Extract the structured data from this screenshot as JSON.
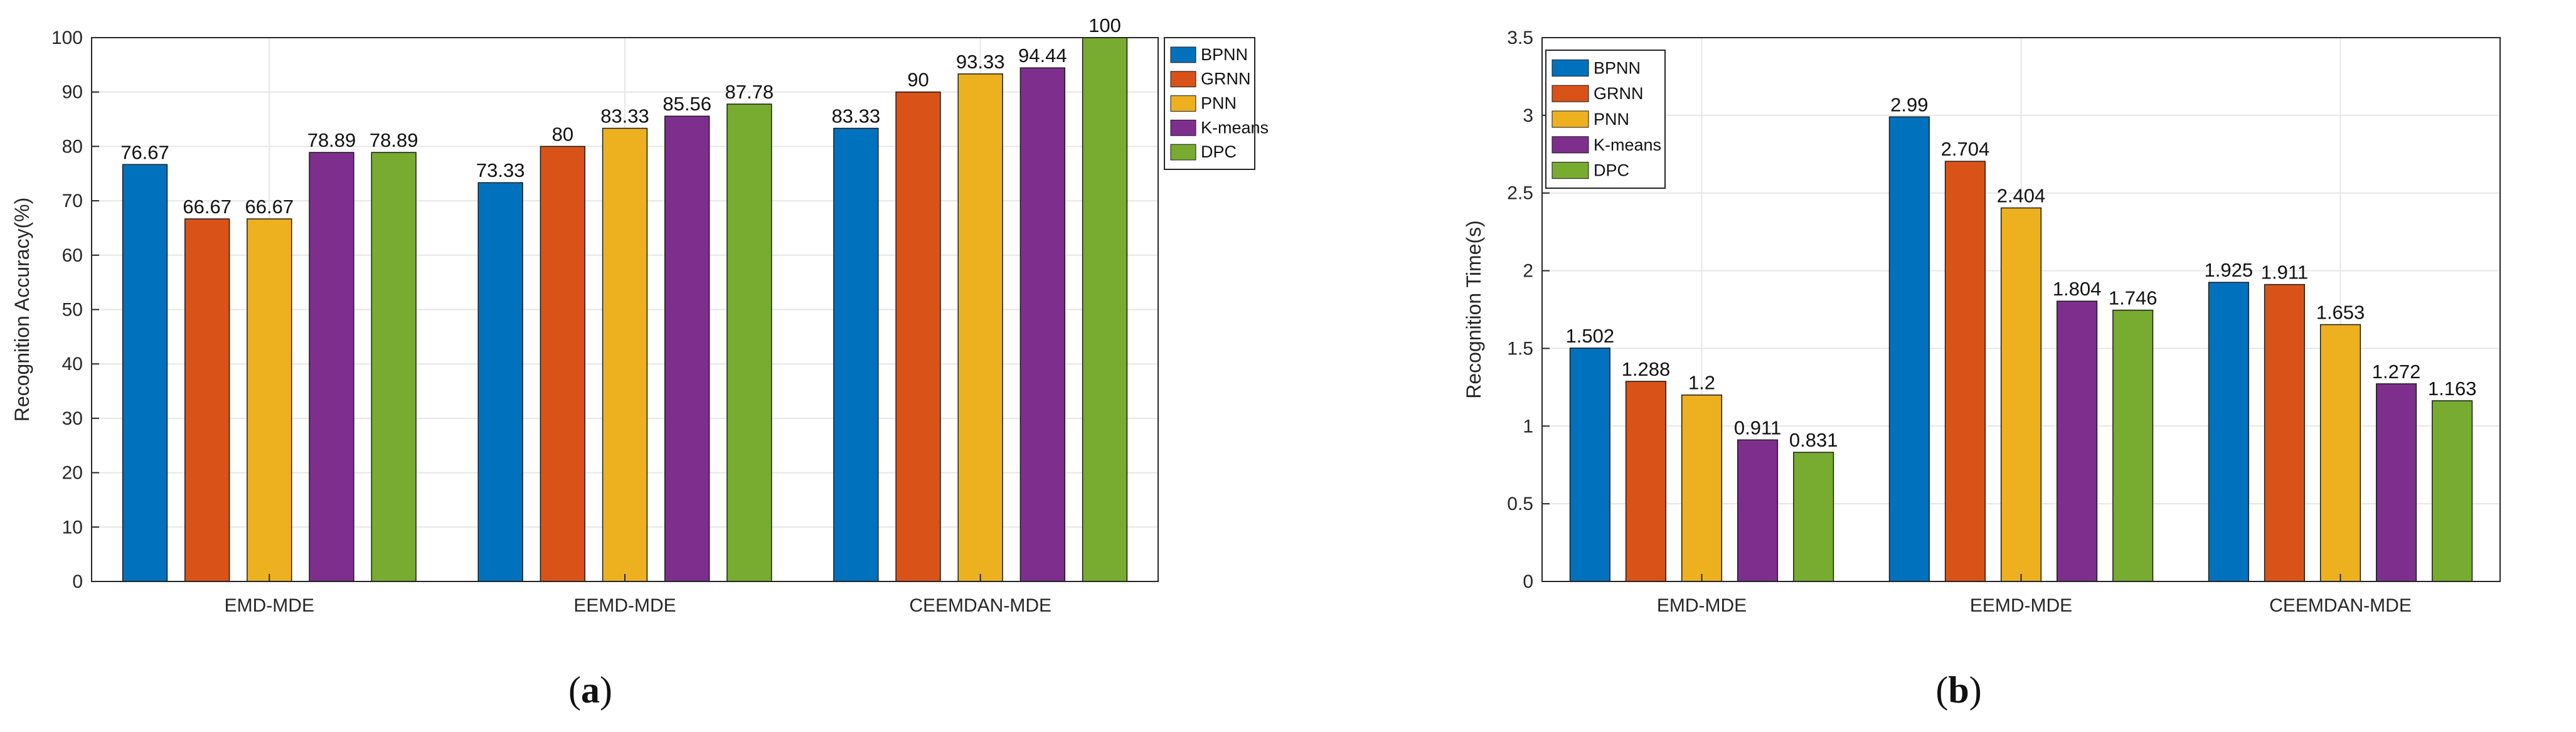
{
  "chart_data": [
    {
      "type": "bar",
      "panel_label": "a",
      "caption_open": "(",
      "caption_close": ")",
      "title": "",
      "xlabel": "",
      "ylabel": "Recognition Accuracy(%)",
      "ylim": [
        0,
        100
      ],
      "yticks": [
        0,
        10,
        20,
        30,
        40,
        50,
        60,
        70,
        80,
        90,
        100
      ],
      "grid": true,
      "legend_position": "right",
      "categories": [
        "EMD-MDE",
        "EEMD-MDE",
        "CEEMDAN-MDE"
      ],
      "series": [
        {
          "name": "BPNN",
          "color": "#0072BD",
          "values": [
            76.67,
            73.33,
            83.33
          ],
          "labels": [
            "76.67",
            "73.33",
            "83.33"
          ]
        },
        {
          "name": "GRNN",
          "color": "#D95319",
          "values": [
            66.67,
            80,
            90
          ],
          "labels": [
            "66.67",
            "80",
            "90"
          ]
        },
        {
          "name": "PNN",
          "color": "#EDB120",
          "values": [
            66.67,
            83.33,
            93.33
          ],
          "labels": [
            "66.67",
            "83.33",
            "93.33"
          ]
        },
        {
          "name": "K-means",
          "color": "#7E2F8E",
          "values": [
            78.89,
            85.56,
            94.44
          ],
          "labels": [
            "78.89",
            "85.56",
            "94.44"
          ]
        },
        {
          "name": "DPC",
          "color": "#77AC30",
          "values": [
            78.89,
            87.78,
            100
          ],
          "labels": [
            "78.89",
            "87.78",
            "100"
          ]
        }
      ]
    },
    {
      "type": "bar",
      "panel_label": "b",
      "caption_open": "(",
      "caption_close": ")",
      "title": "",
      "xlabel": "",
      "ylabel": "Recognition Time(s)",
      "ylim": [
        0,
        3.5
      ],
      "yticks": [
        0,
        0.5,
        1,
        1.5,
        2,
        2.5,
        3,
        3.5
      ],
      "grid": true,
      "legend_position": "top-left",
      "categories": [
        "EMD-MDE",
        "EEMD-MDE",
        "CEEMDAN-MDE"
      ],
      "series": [
        {
          "name": "BPNN",
          "color": "#0072BD",
          "values": [
            1.502,
            2.99,
            1.925
          ],
          "labels": [
            "1.502",
            "2.99",
            "1.925"
          ]
        },
        {
          "name": "GRNN",
          "color": "#D95319",
          "values": [
            1.288,
            2.704,
            1.911
          ],
          "labels": [
            "1.288",
            "2.704",
            "1.911"
          ]
        },
        {
          "name": "PNN",
          "color": "#EDB120",
          "values": [
            1.2,
            2.404,
            1.653
          ],
          "labels": [
            "1.2",
            "2.404",
            "1.653"
          ]
        },
        {
          "name": "K-means",
          "color": "#7E2F8E",
          "values": [
            0.911,
            1.804,
            1.272
          ],
          "labels": [
            "0.911",
            "1.804",
            "1.272"
          ]
        },
        {
          "name": "DPC",
          "color": "#77AC30",
          "values": [
            0.831,
            1.746,
            1.163
          ],
          "labels": [
            "0.831",
            "1.746",
            "1.163"
          ]
        }
      ]
    }
  ]
}
